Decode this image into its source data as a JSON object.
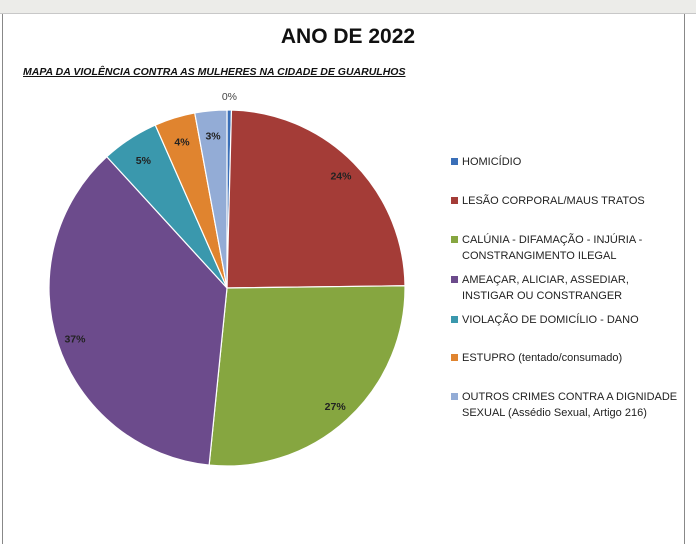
{
  "chart_data": {
    "type": "pie",
    "title": "ANO DE 2022",
    "subtitle": "MAPA DA VIOLÊNCIA CONTRA AS MULHERES NA CIDADE DE GUARULHOS",
    "legend_position": "right",
    "slices": [
      {
        "name": "HOMICÍDIO",
        "value": 0.4,
        "label": "0%",
        "color": "#3a6fb8"
      },
      {
        "name": "LESÃO CORPORAL/MAUS TRATOS",
        "value": 24.4,
        "label": "24%",
        "color": "#a43c37"
      },
      {
        "name": "CALÚNIA - DIFAMAÇÃO - INJÚRIA - CONSTRANGIMENTO ILEGAL",
        "value": 26.8,
        "label": "27%",
        "color": "#86a640"
      },
      {
        "name": "AMEAÇAR, ALICIAR, ASSEDIAR, INSTIGAR OU CONSTRANGER",
        "value": 36.6,
        "label": "37%",
        "color": "#6c4b8c"
      },
      {
        "name": "VIOLAÇÃO DE DOMICÍLIO - DANO",
        "value": 5.2,
        "label": "5%",
        "color": "#3a98ad"
      },
      {
        "name": "ESTUPRO (tentado/consumado)",
        "value": 3.7,
        "label": "4%",
        "color": "#e0842f"
      },
      {
        "name": "OUTROS CRIMES CONTRA A DIGNIDADE SEXUAL (Assédio Sexual, Artigo 216)",
        "value": 2.9,
        "label": "3%",
        "color": "#93acd6"
      }
    ],
    "legend_lines": [
      [
        "HOMICÍDIO"
      ],
      [
        "LESÃO CORPORAL/MAUS TRATOS"
      ],
      [
        "CALÚNIA - DIFAMAÇÃO - INJÚRIA -",
        "CONSTRANGIMENTO ILEGAL"
      ],
      [
        "AMEAÇAR, ALICIAR, ASSEDIAR,",
        "INSTIGAR OU CONSTRANGER"
      ],
      [
        "VIOLAÇÃO DE DOMICÍLIO - DANO"
      ],
      [
        "ESTUPRO (tentado/consumado)"
      ],
      [
        "OUTROS CRIMES CONTRA A DIGNIDADE",
        "SEXUAL (Assédio Sexual, Artigo 216)"
      ]
    ]
  }
}
